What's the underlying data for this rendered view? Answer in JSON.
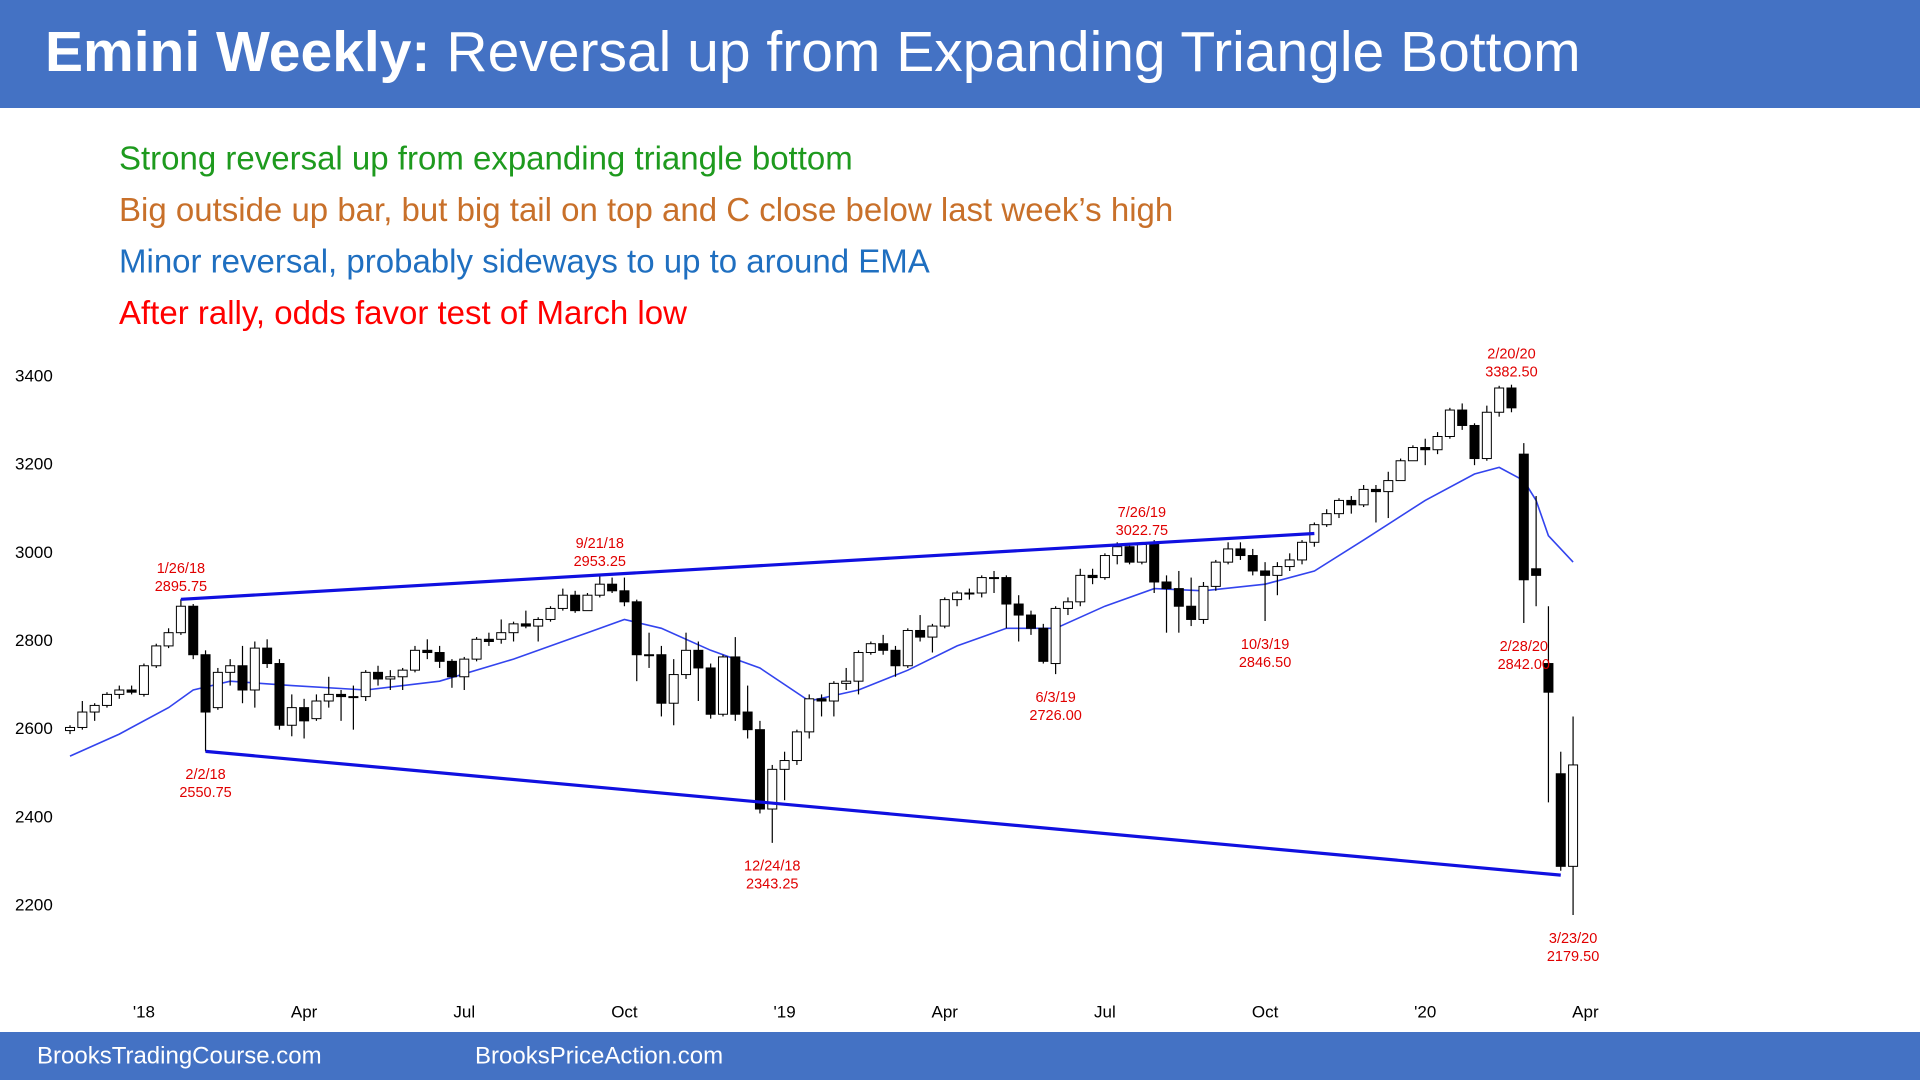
{
  "chart_data": {
    "type": "candlestick",
    "title_bold": "Emini Weekly:",
    "title": "Reversal up from Expanding Triangle Bottom",
    "header_color": "#4472c4",
    "notes": [
      {
        "text": "Strong reversal up from expanding triangle bottom",
        "color": "#1e9a1e"
      },
      {
        "text": "Big outside up bar, but big tail on top and C close below last week’s high",
        "color": "#c8702a"
      },
      {
        "text": "Minor reversal, probably sideways to up to around EMA",
        "color": "#1f6fc0"
      },
      {
        "text": "After rally, odds favor test of March low",
        "color": "#ff0000"
      }
    ],
    "footer": [
      "BrooksTradingCourse.com",
      "BrooksPriceAction.com"
    ],
    "x": [
      0,
      1,
      2,
      3,
      4,
      5,
      6,
      7,
      8,
      9,
      10,
      11,
      12,
      13,
      14,
      15,
      16,
      17,
      18,
      19,
      20,
      21,
      22,
      23,
      24,
      25,
      26,
      27,
      28,
      29,
      30,
      31,
      32,
      33,
      34,
      35,
      36,
      37,
      38,
      39,
      40,
      41,
      42,
      43,
      44,
      45,
      46,
      47,
      48,
      49,
      50,
      51,
      52,
      53,
      54,
      55,
      56,
      57,
      58,
      59,
      60,
      61,
      62,
      63,
      64,
      65,
      66,
      67,
      68,
      69,
      70,
      71,
      72,
      73,
      74,
      75,
      76,
      77,
      78,
      79,
      80,
      81,
      82,
      83,
      84,
      85,
      86,
      87,
      88,
      89,
      90,
      91,
      92,
      93,
      94,
      95,
      96,
      97,
      98,
      99,
      100,
      101,
      102,
      103,
      104,
      105,
      106,
      107,
      108,
      109,
      110,
      111,
      112,
      113,
      114,
      115,
      116,
      117,
      118,
      119,
      120,
      121,
      122
    ],
    "open": [
      2598,
      2605,
      2640,
      2655,
      2680,
      2690,
      2680,
      2745,
      2790,
      2820,
      2880,
      2770,
      2650,
      2730,
      2745,
      2690,
      2785,
      2750,
      2610,
      2650,
      2625,
      2665,
      2680,
      2675,
      2675,
      2730,
      2715,
      2720,
      2735,
      2780,
      2775,
      2755,
      2720,
      2760,
      2805,
      2805,
      2820,
      2840,
      2835,
      2850,
      2875,
      2905,
      2870,
      2905,
      2930,
      2915,
      2890,
      2770,
      2770,
      2660,
      2725,
      2780,
      2740,
      2635,
      2765,
      2640,
      2600,
      2420,
      2510,
      2530,
      2595,
      2670,
      2665,
      2705,
      2710,
      2775,
      2795,
      2780,
      2745,
      2825,
      2810,
      2835,
      2895,
      2910,
      2910,
      2945,
      2945,
      2885,
      2860,
      2830,
      2750,
      2875,
      2890,
      2950,
      2945,
      2995,
      3015,
      2980,
      3020,
      2935,
      2920,
      2880,
      2850,
      2925,
      2980,
      3010,
      2995,
      2960,
      2950,
      2970,
      2985,
      3025,
      3065,
      3090,
      3120,
      3110,
      3145,
      3140,
      3165,
      3210,
      3240,
      3235,
      3265,
      3325,
      3290,
      3215,
      3320,
      3375,
      3225,
      2965,
      2750,
      2500,
      2290
    ],
    "high": [
      2610,
      2665,
      2660,
      2685,
      2700,
      2700,
      2750,
      2795,
      2830,
      2895.75,
      2885,
      2780,
      2740,
      2760,
      2790,
      2800,
      2805,
      2760,
      2680,
      2670,
      2680,
      2720,
      2690,
      2700,
      2735,
      2745,
      2735,
      2740,
      2790,
      2805,
      2790,
      2760,
      2765,
      2810,
      2820,
      2850,
      2845,
      2870,
      2855,
      2880,
      2920,
      2915,
      2910,
      2953.25,
      2945,
      2945,
      2895,
      2820,
      2790,
      2760,
      2820,
      2800,
      2750,
      2770,
      2810,
      2700,
      2620,
      2520,
      2550,
      2600,
      2680,
      2680,
      2710,
      2740,
      2780,
      2800,
      2815,
      2790,
      2830,
      2860,
      2840,
      2900,
      2915,
      2920,
      2950,
      2960,
      2950,
      2905,
      2870,
      2840,
      2880,
      2900,
      2965,
      2965,
      3000,
      3025,
      3020,
      3022.75,
      3030,
      2950,
      2960,
      2945,
      2935,
      2985,
      3025,
      3025,
      3010,
      2980,
      2980,
      3000,
      3030,
      3070,
      3100,
      3125,
      3130,
      3155,
      3155,
      3185,
      3215,
      3245,
      3260,
      3275,
      3330,
      3340,
      3295,
      3335,
      3380,
      3382.5,
      3250,
      3130,
      2880,
      2550,
      2630
    ],
    "low": [
      2590,
      2600,
      2620,
      2650,
      2670,
      2680,
      2675,
      2740,
      2785,
      2815,
      2760,
      2550.75,
      2645,
      2700,
      2660,
      2650,
      2740,
      2600,
      2585,
      2580,
      2620,
      2650,
      2620,
      2600,
      2665,
      2700,
      2690,
      2690,
      2730,
      2760,
      2740,
      2695,
      2690,
      2755,
      2790,
      2795,
      2800,
      2830,
      2800,
      2845,
      2870,
      2865,
      2870,
      2900,
      2910,
      2880,
      2710,
      2740,
      2630,
      2610,
      2715,
      2665,
      2625,
      2630,
      2620,
      2580,
      2410,
      2343.25,
      2440,
      2520,
      2580,
      2630,
      2630,
      2690,
      2680,
      2770,
      2770,
      2720,
      2740,
      2800,
      2775,
      2830,
      2880,
      2895,
      2900,
      2910,
      2830,
      2800,
      2815,
      2750,
      2726,
      2860,
      2880,
      2930,
      2940,
      2975,
      2975,
      2975,
      2910,
      2820,
      2820,
      2835,
      2840,
      2915,
      2975,
      2985,
      2950,
      2846.5,
      2905,
      2960,
      2975,
      3015,
      3060,
      3080,
      3090,
      3105,
      3070,
      3080,
      3165,
      3210,
      3200,
      3225,
      3260,
      3280,
      3200,
      3210,
      3310,
      3320,
      2842,
      2880,
      2435,
      2280,
      2179.5
    ],
    "close": [
      2605,
      2640,
      2655,
      2680,
      2690,
      2685,
      2745,
      2790,
      2820,
      2880,
      2770,
      2640,
      2730,
      2745,
      2690,
      2785,
      2750,
      2610,
      2650,
      2620,
      2665,
      2680,
      2675,
      2675,
      2730,
      2715,
      2720,
      2735,
      2780,
      2775,
      2755,
      2720,
      2760,
      2805,
      2800,
      2820,
      2840,
      2835,
      2850,
      2875,
      2905,
      2870,
      2905,
      2930,
      2915,
      2890,
      2770,
      2770,
      2660,
      2725,
      2780,
      2740,
      2635,
      2765,
      2635,
      2600,
      2420,
      2510,
      2530,
      2595,
      2670,
      2665,
      2705,
      2710,
      2775,
      2795,
      2780,
      2745,
      2825,
      2810,
      2835,
      2895,
      2910,
      2910,
      2945,
      2945,
      2885,
      2860,
      2830,
      2755,
      2875,
      2890,
      2950,
      2945,
      2995,
      3015,
      2980,
      3020,
      2935,
      2920,
      2880,
      2850,
      2925,
      2980,
      3010,
      2995,
      2960,
      2950,
      2970,
      2985,
      3025,
      3065,
      3090,
      3120,
      3110,
      3145,
      3140,
      3165,
      3210,
      3240,
      3235,
      3265,
      3325,
      3290,
      3215,
      3320,
      3375,
      3330,
      2940,
      2950,
      2685,
      2290,
      2520
    ],
    "up_color": "#ffffff",
    "down_color": "#000000",
    "ema": {
      "color": "#3344ee",
      "x": [
        0,
        4,
        8,
        10,
        13,
        18,
        24,
        30,
        36,
        42,
        45,
        48,
        52,
        56,
        60,
        64,
        68,
        72,
        76,
        80,
        84,
        88,
        92,
        97,
        101,
        105,
        110,
        114,
        116,
        118,
        119,
        120,
        122
      ],
      "values": [
        2540,
        2590,
        2650,
        2690,
        2710,
        2700,
        2690,
        2710,
        2760,
        2820,
        2850,
        2830,
        2780,
        2740,
        2665,
        2690,
        2735,
        2790,
        2830,
        2830,
        2880,
        2920,
        2915,
        2930,
        2960,
        3030,
        3120,
        3180,
        3195,
        3165,
        3120,
        3040,
        2980
      ]
    },
    "lines": [
      {
        "color": "#1010e0",
        "x": [
          9,
          101
        ],
        "values": [
          2895.75,
          3045
        ]
      },
      {
        "color": "#1010e0",
        "x": [
          11,
          121
        ],
        "values": [
          2550.75,
          2270
        ]
      }
    ],
    "annotations": [
      {
        "date": "1/26/18",
        "value": 2895.75,
        "x": 9,
        "position": "above"
      },
      {
        "date": "2/2/18",
        "value": 2550.75,
        "x": 11,
        "position": "below"
      },
      {
        "date": "9/21/18",
        "value": 2953.25,
        "x": 43,
        "position": "above"
      },
      {
        "date": "12/24/18",
        "value": 2343.25,
        "x": 57,
        "position": "below"
      },
      {
        "date": "6/3/19",
        "value": 2726,
        "value_label": "2726.00",
        "x": 80,
        "position": "below"
      },
      {
        "date": "7/26/19",
        "value": 3022.75,
        "x": 87,
        "position": "above"
      },
      {
        "date": "10/3/19",
        "value": 2846.5,
        "value_label": "2846.50",
        "x": 97,
        "position": "below"
      },
      {
        "date": "2/20/20",
        "value": 3382.5,
        "value_label": "3382.50",
        "x": 117,
        "position": "above"
      },
      {
        "date": "2/28/20",
        "value": 2842,
        "value_label": "2842.00",
        "x": 118,
        "position": "below"
      },
      {
        "date": "3/23/20",
        "value": 2179.5,
        "value_label": "2179.50",
        "x": 122,
        "position": "below"
      }
    ],
    "annotation_color": "#e00000",
    "xlim": [
      -1,
      148
    ],
    "xticks": [
      {
        "value": 6,
        "label": "'18"
      },
      {
        "value": 19,
        "label": "Apr"
      },
      {
        "value": 32,
        "label": "Jul"
      },
      {
        "value": 45,
        "label": "Oct"
      },
      {
        "value": 58,
        "label": "'19"
      },
      {
        "value": 71,
        "label": "Apr"
      },
      {
        "value": 84,
        "label": "Jul"
      },
      {
        "value": 97,
        "label": "Oct"
      },
      {
        "value": 110,
        "label": "'20"
      },
      {
        "value": 123,
        "label": "Apr"
      }
    ],
    "ylim": [
      2100,
      3500
    ],
    "yticks": [
      2200,
      2400,
      2600,
      2800,
      3000,
      3200,
      3400
    ]
  }
}
